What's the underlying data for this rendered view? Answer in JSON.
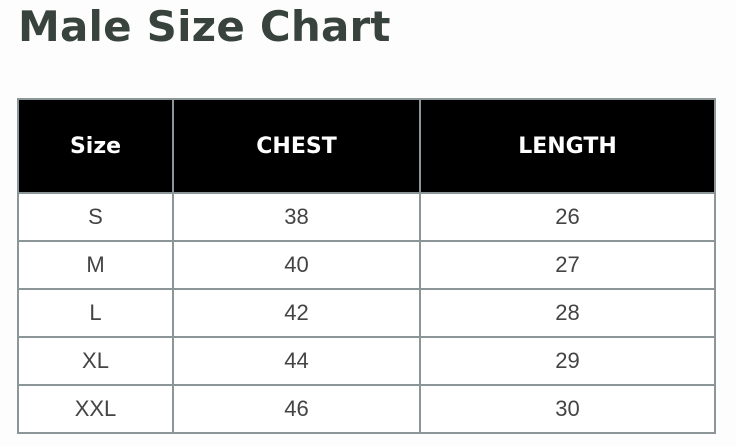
{
  "title": "Male Size Chart",
  "table": {
    "headers": [
      "Size",
      "CHEST",
      "LENGTH"
    ],
    "rows": [
      [
        "S",
        "38",
        "26"
      ],
      [
        "M",
        "40",
        "27"
      ],
      [
        "L",
        "42",
        "28"
      ],
      [
        "XL",
        "44",
        "29"
      ],
      [
        "XXL",
        "46",
        "30"
      ]
    ]
  }
}
